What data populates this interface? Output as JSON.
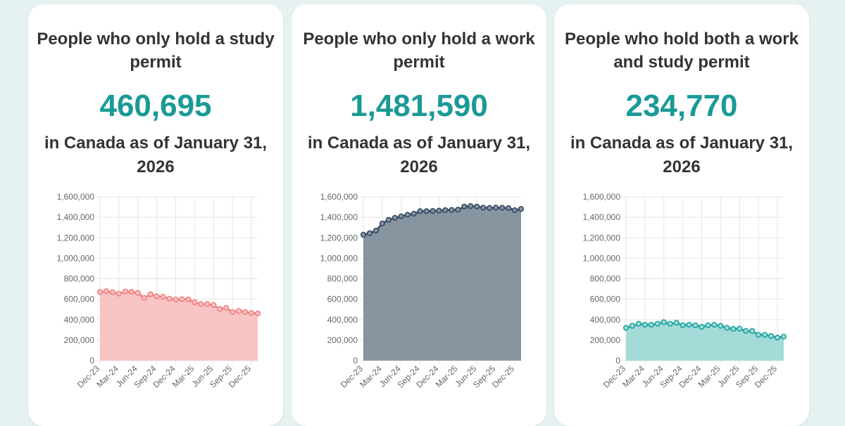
{
  "cards": [
    {
      "title": "People who only hold a study permit",
      "value": "460,695",
      "subtitle": "in Canada as of January 31, 2026"
    },
    {
      "title": "People who only hold a work permit",
      "value": "1,481,590",
      "subtitle": "in Canada as of January 31, 2026"
    },
    {
      "title": "People who hold both a work and study permit",
      "value": "234,770",
      "subtitle": "in Canada as of January 31, 2026"
    }
  ],
  "colors": {
    "accent": "#1a9a96",
    "background": "#e6f2f2",
    "card": "#ffffff",
    "text": "#333333",
    "grid": "#e5e5e5"
  },
  "chart_data": [
    {
      "type": "area",
      "x": [
        "Dec-23",
        "Jan-24",
        "Feb-24",
        "Mar-24",
        "Apr-24",
        "May-24",
        "Jun-24",
        "Jul-24",
        "Aug-24",
        "Sep-24",
        "Oct-24",
        "Nov-24",
        "Dec-24",
        "Jan-25",
        "Feb-25",
        "Mar-25",
        "Apr-25",
        "May-25",
        "Jun-25",
        "Jul-25",
        "Aug-25",
        "Sep-25",
        "Oct-25",
        "Nov-25",
        "Dec-25",
        "Jan-26"
      ],
      "xticks": [
        "Dec-23",
        "Mar-24",
        "Jun-24",
        "Sep-24",
        "Dec-24",
        "Mar-25",
        "Jun-25",
        "Sep-25",
        "Dec-25"
      ],
      "series": [
        {
          "values": [
            670000,
            678000,
            668000,
            655000,
            675000,
            672000,
            662000,
            612000,
            648000,
            628000,
            624000,
            605000,
            597000,
            600000,
            598000,
            570000,
            553000,
            553000,
            543000,
            505000,
            515000,
            475000,
            485000,
            475000,
            465000,
            460695
          ],
          "line_color": "#f08080",
          "fill_color": "#f9c4c4"
        }
      ],
      "ylim": [
        0,
        1600000
      ],
      "yticks": [
        0,
        200000,
        400000,
        600000,
        800000,
        1000000,
        1200000,
        1400000,
        1600000
      ],
      "grid": true
    },
    {
      "type": "area",
      "x": [
        "Dec-23",
        "Jan-24",
        "Feb-24",
        "Mar-24",
        "Apr-24",
        "May-24",
        "Jun-24",
        "Jul-24",
        "Aug-24",
        "Sep-24",
        "Oct-24",
        "Nov-24",
        "Dec-24",
        "Jan-25",
        "Feb-25",
        "Mar-25",
        "Apr-25",
        "May-25",
        "Jun-25",
        "Jul-25",
        "Aug-25",
        "Sep-25",
        "Oct-25",
        "Nov-25",
        "Dec-25",
        "Jan-26"
      ],
      "xticks": [
        "Dec-23",
        "Mar-24",
        "Jun-24",
        "Sep-24",
        "Dec-24",
        "Mar-25",
        "Jun-25",
        "Sep-25",
        "Dec-25"
      ],
      "series": [
        {
          "values": [
            1230000,
            1245000,
            1270000,
            1340000,
            1375000,
            1395000,
            1410000,
            1425000,
            1435000,
            1460000,
            1460000,
            1462000,
            1465000,
            1470000,
            1472000,
            1475000,
            1505000,
            1510000,
            1505000,
            1495000,
            1492000,
            1495000,
            1493000,
            1490000,
            1470000,
            1481590
          ],
          "line_color": "#34495e",
          "fill_color": "#8795a1"
        }
      ],
      "ylim": [
        0,
        1600000
      ],
      "yticks": [
        0,
        200000,
        400000,
        600000,
        800000,
        1000000,
        1200000,
        1400000,
        1600000
      ],
      "grid": true
    },
    {
      "type": "area",
      "x": [
        "Dec-23",
        "Jan-24",
        "Feb-24",
        "Mar-24",
        "Apr-24",
        "May-24",
        "Jun-24",
        "Jul-24",
        "Aug-24",
        "Sep-24",
        "Oct-24",
        "Nov-24",
        "Dec-24",
        "Jan-25",
        "Feb-25",
        "Mar-25",
        "Apr-25",
        "May-25",
        "Jun-25",
        "Jul-25",
        "Aug-25",
        "Sep-25",
        "Oct-25",
        "Nov-25",
        "Dec-25",
        "Jan-26"
      ],
      "xticks": [
        "Dec-23",
        "Mar-24",
        "Jun-24",
        "Sep-24",
        "Dec-24",
        "Mar-25",
        "Jun-25",
        "Sep-25",
        "Dec-25"
      ],
      "series": [
        {
          "values": [
            320000,
            340000,
            360000,
            350000,
            350000,
            360000,
            375000,
            360000,
            370000,
            345000,
            350000,
            345000,
            330000,
            345000,
            350000,
            340000,
            320000,
            310000,
            312000,
            290000,
            290000,
            252000,
            252000,
            240000,
            225000,
            234770
          ],
          "line_color": "#1aa39e",
          "fill_color": "#a3dbd8"
        }
      ],
      "ylim": [
        0,
        1600000
      ],
      "yticks": [
        0,
        200000,
        400000,
        600000,
        800000,
        1000000,
        1200000,
        1400000,
        1600000
      ],
      "grid": true
    }
  ]
}
